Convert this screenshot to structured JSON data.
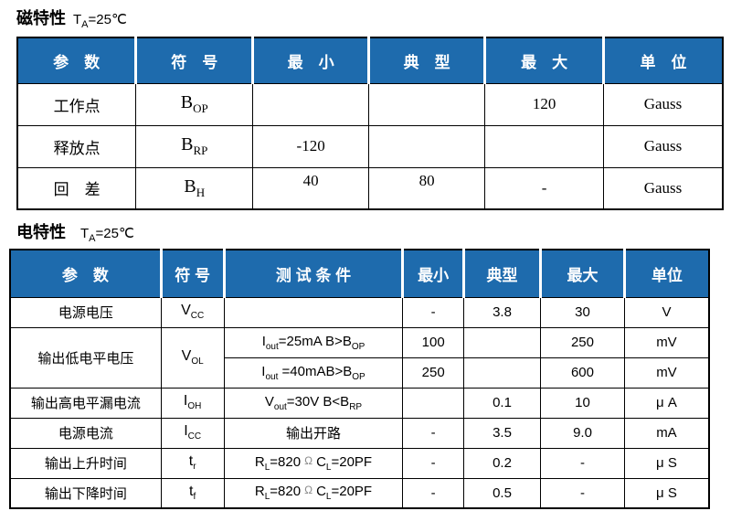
{
  "colors": {
    "header_bg": "#1e6bad",
    "header_text": "#ffffff",
    "border": "#000000",
    "omega_gray": "#8a8a8a"
  },
  "magnetic": {
    "title": "磁特性",
    "condition": {
      "base": "T",
      "sub": "A",
      "rest": "=25℃"
    },
    "headers": [
      "参　数",
      "符　号",
      "最　小",
      "典　型",
      "最　大",
      "单　位"
    ],
    "rows": [
      {
        "param": "工作点",
        "symbol": [
          {
            "t": "B"
          },
          {
            "s": "OP"
          }
        ],
        "min": "",
        "typ": "",
        "max": "120",
        "unit": "Gauss"
      },
      {
        "param": "释放点",
        "symbol": [
          {
            "t": "B"
          },
          {
            "s": "RP"
          }
        ],
        "min": "-120",
        "typ": "",
        "max": "",
        "unit": "Gauss"
      },
      {
        "param": "回　差",
        "symbol": [
          {
            "t": "B"
          },
          {
            "s": "H"
          }
        ],
        "min": "40",
        "typ": "80",
        "max": "-",
        "unit": "Gauss"
      }
    ]
  },
  "electrical": {
    "title": "电特性",
    "condition": {
      "base": "T",
      "sub": "A",
      "rest": "=25℃"
    },
    "headers": [
      "参　数",
      "符 号",
      "测 试 条 件",
      "最小",
      "典型",
      "最大",
      "单位"
    ],
    "rows": [
      {
        "param": "电源电压",
        "symbol": [
          {
            "t": "V"
          },
          {
            "s": "CC"
          }
        ],
        "cond": [],
        "min": "-",
        "typ": "3.8",
        "max": "30",
        "unit": "V"
      },
      {
        "param": "输出低电平电压",
        "symbol": [
          {
            "t": "V"
          },
          {
            "s": "OL"
          }
        ],
        "cond": [
          {
            "t": "I"
          },
          {
            "s": "out"
          },
          {
            "t": "=25mA B>B"
          },
          {
            "s": "OP"
          }
        ],
        "min": "100",
        "typ": "",
        "max": "250",
        "unit": "mV"
      },
      {
        "cond": [
          {
            "t": "I"
          },
          {
            "s": "out"
          },
          {
            "t": " =40mAB>B"
          },
          {
            "s": "OP"
          }
        ],
        "min": "250",
        "typ": "",
        "max": "600",
        "unit": "mV"
      },
      {
        "param": "输出高电平漏电流",
        "symbol": [
          {
            "t": "I"
          },
          {
            "s": "OH"
          }
        ],
        "cond": [
          {
            "t": "V"
          },
          {
            "s": "out"
          },
          {
            "t": "=30V B<B"
          },
          {
            "s": "RP"
          }
        ],
        "min": "",
        "typ": "0.1",
        "max": "10",
        "unit": "μ A"
      },
      {
        "param": "电源电流",
        "symbol": [
          {
            "t": "I"
          },
          {
            "s": "CC"
          }
        ],
        "cond": [
          {
            "t": "输出开路"
          }
        ],
        "min": "-",
        "typ": "3.5",
        "max": "9.0",
        "unit": "mA"
      },
      {
        "param": "输出上升时间",
        "symbol": [
          {
            "t": "t"
          },
          {
            "s": "r"
          }
        ],
        "cond": [
          {
            "t": "R"
          },
          {
            "s": "L"
          },
          {
            "t": "=820"
          },
          {
            "o": "Ω"
          },
          {
            "t": "C"
          },
          {
            "s": "L"
          },
          {
            "t": "=20PF"
          }
        ],
        "min": "-",
        "typ": "0.2",
        "max": "-",
        "unit": "μ S"
      },
      {
        "param": "输出下降时间",
        "symbol": [
          {
            "t": "t"
          },
          {
            "s": "f"
          }
        ],
        "cond": [
          {
            "t": "R"
          },
          {
            "s": "L"
          },
          {
            "t": "=820"
          },
          {
            "o": "Ω"
          },
          {
            "t": "C"
          },
          {
            "s": "L"
          },
          {
            "t": "=20PF"
          }
        ],
        "min": "-",
        "typ": "0.5",
        "max": "-",
        "unit": "μ S"
      }
    ]
  }
}
